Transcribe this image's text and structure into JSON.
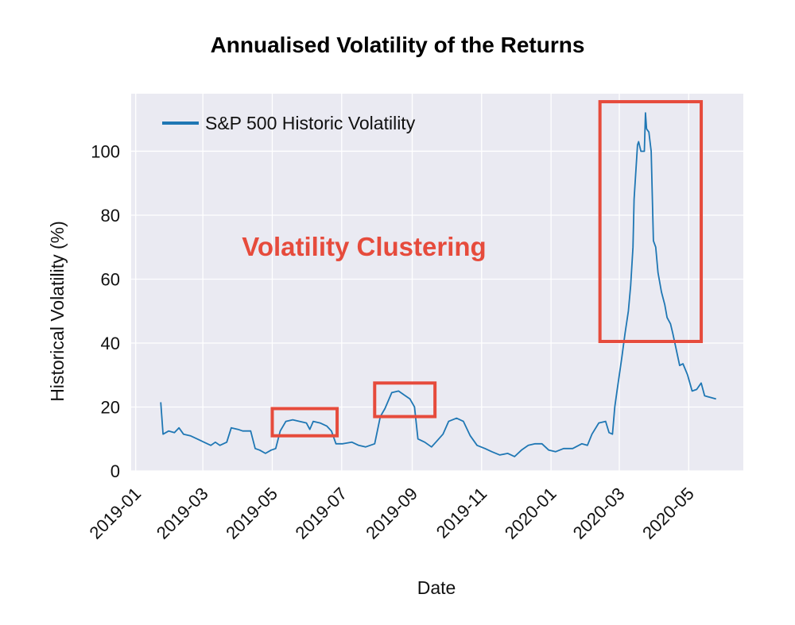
{
  "chart_data": {
    "type": "line",
    "title": "Annualised Volatility of the Returns",
    "xlabel": "Date",
    "ylabel": "Historical Volatility (%)",
    "xlim": [
      "2018-12-28",
      "2020-06-18"
    ],
    "ylim": [
      0,
      118
    ],
    "x_ticks": [
      "2019-01",
      "2019-03",
      "2019-05",
      "2019-07",
      "2019-09",
      "2019-11",
      "2020-01",
      "2020-03",
      "2020-05"
    ],
    "y_ticks": [
      0,
      20,
      40,
      60,
      80,
      100
    ],
    "grid": true,
    "legend_position": "top-left",
    "series": [
      {
        "name": "S&P 500 Historic Volatility",
        "color": "#1f77b4",
        "points": [
          [
            "2019-01-23",
            21.5
          ],
          [
            "2019-01-25",
            11.5
          ],
          [
            "2019-01-30",
            12.5
          ],
          [
            "2019-02-04",
            12.0
          ],
          [
            "2019-02-08",
            13.5
          ],
          [
            "2019-02-12",
            11.5
          ],
          [
            "2019-02-18",
            11.0
          ],
          [
            "2019-02-24",
            10.0
          ],
          [
            "2019-03-02",
            9.0
          ],
          [
            "2019-03-08",
            8.0
          ],
          [
            "2019-03-12",
            9.0
          ],
          [
            "2019-03-16",
            8.0
          ],
          [
            "2019-03-22",
            9.0
          ],
          [
            "2019-03-26",
            13.5
          ],
          [
            "2019-04-01",
            13.0
          ],
          [
            "2019-04-05",
            12.5
          ],
          [
            "2019-04-12",
            12.5
          ],
          [
            "2019-04-16",
            7.0
          ],
          [
            "2019-04-20",
            6.5
          ],
          [
            "2019-04-25",
            5.5
          ],
          [
            "2019-04-30",
            6.5
          ],
          [
            "2019-05-04",
            7.0
          ],
          [
            "2019-05-08",
            12.5
          ],
          [
            "2019-05-13",
            15.5
          ],
          [
            "2019-05-19",
            16.0
          ],
          [
            "2019-05-25",
            15.5
          ],
          [
            "2019-05-31",
            15.0
          ],
          [
            "2019-06-03",
            13.0
          ],
          [
            "2019-06-06",
            15.5
          ],
          [
            "2019-06-12",
            15.0
          ],
          [
            "2019-06-18",
            14.0
          ],
          [
            "2019-06-22",
            12.5
          ],
          [
            "2019-06-26",
            8.5
          ],
          [
            "2019-07-02",
            8.5
          ],
          [
            "2019-07-10",
            9.0
          ],
          [
            "2019-07-16",
            8.0
          ],
          [
            "2019-07-22",
            7.5
          ],
          [
            "2019-07-30",
            8.5
          ],
          [
            "2019-08-04",
            17.0
          ],
          [
            "2019-08-08",
            19.5
          ],
          [
            "2019-08-14",
            24.5
          ],
          [
            "2019-08-20",
            25.0
          ],
          [
            "2019-08-26",
            23.5
          ],
          [
            "2019-08-30",
            22.5
          ],
          [
            "2019-09-03",
            20.0
          ],
          [
            "2019-09-06",
            10.0
          ],
          [
            "2019-09-12",
            9.0
          ],
          [
            "2019-09-18",
            7.5
          ],
          [
            "2019-09-23",
            9.5
          ],
          [
            "2019-09-28",
            11.5
          ],
          [
            "2019-10-03",
            15.5
          ],
          [
            "2019-10-10",
            16.5
          ],
          [
            "2019-10-16",
            15.5
          ],
          [
            "2019-10-22",
            11.0
          ],
          [
            "2019-10-28",
            8.0
          ],
          [
            "2019-11-04",
            7.0
          ],
          [
            "2019-11-10",
            6.0
          ],
          [
            "2019-11-17",
            5.0
          ],
          [
            "2019-11-24",
            5.5
          ],
          [
            "2019-11-30",
            4.5
          ],
          [
            "2019-12-06",
            6.5
          ],
          [
            "2019-12-12",
            8.0
          ],
          [
            "2019-12-18",
            8.5
          ],
          [
            "2019-12-24",
            8.5
          ],
          [
            "2019-12-30",
            6.5
          ],
          [
            "2020-01-05",
            6.0
          ],
          [
            "2020-01-12",
            7.0
          ],
          [
            "2020-01-20",
            7.0
          ],
          [
            "2020-01-28",
            8.5
          ],
          [
            "2020-02-02",
            8.0
          ],
          [
            "2020-02-06",
            11.5
          ],
          [
            "2020-02-12",
            15.0
          ],
          [
            "2020-02-18",
            15.5
          ],
          [
            "2020-02-21",
            12.0
          ],
          [
            "2020-02-24",
            11.5
          ],
          [
            "2020-02-26",
            20.0
          ],
          [
            "2020-02-28",
            25.0
          ],
          [
            "2020-03-03",
            35.0
          ],
          [
            "2020-03-06",
            43.0
          ],
          [
            "2020-03-09",
            50.0
          ],
          [
            "2020-03-11",
            58.0
          ],
          [
            "2020-03-13",
            70.0
          ],
          [
            "2020-03-14",
            85.0
          ],
          [
            "2020-03-17",
            102.0
          ],
          [
            "2020-03-18",
            103.0
          ],
          [
            "2020-03-20",
            100.0
          ],
          [
            "2020-03-23",
            100.0
          ],
          [
            "2020-03-24",
            112.0
          ],
          [
            "2020-03-25",
            107.0
          ],
          [
            "2020-03-27",
            106.0
          ],
          [
            "2020-03-29",
            100.0
          ],
          [
            "2020-03-31",
            72.0
          ],
          [
            "2020-04-02",
            70.0
          ],
          [
            "2020-04-04",
            62.0
          ],
          [
            "2020-04-07",
            56.0
          ],
          [
            "2020-04-10",
            52.0
          ],
          [
            "2020-04-12",
            48.0
          ],
          [
            "2020-04-15",
            46.0
          ],
          [
            "2020-04-17",
            43.0
          ],
          [
            "2020-04-20",
            38.0
          ],
          [
            "2020-04-23",
            33.0
          ],
          [
            "2020-04-26",
            33.5
          ],
          [
            "2020-04-30",
            30.0
          ],
          [
            "2020-05-04",
            25.0
          ],
          [
            "2020-05-08",
            25.5
          ],
          [
            "2020-05-12",
            27.5
          ],
          [
            "2020-05-15",
            23.5
          ],
          [
            "2020-05-20",
            23.0
          ],
          [
            "2020-05-25",
            22.5
          ]
        ]
      }
    ],
    "annotations": [
      {
        "text": "Volatility Clustering",
        "color": "#e64b3c"
      }
    ],
    "highlight_boxes": [
      {
        "x": [
          "2019-05-01",
          "2019-06-27"
        ],
        "y": [
          11,
          19.5
        ],
        "color": "#e64b3c"
      },
      {
        "x": [
          "2019-07-30",
          "2019-09-21"
        ],
        "y": [
          17,
          27.5
        ],
        "color": "#e64b3c"
      },
      {
        "x": [
          "2020-02-13",
          "2020-05-12"
        ],
        "y": [
          40.5,
          115.5
        ],
        "color": "#e64b3c"
      }
    ],
    "colors": {
      "line": "#1f77b4",
      "plot_background": "#eaeaf2",
      "grid": "#ffffff",
      "highlight": "#e64b3c"
    }
  }
}
